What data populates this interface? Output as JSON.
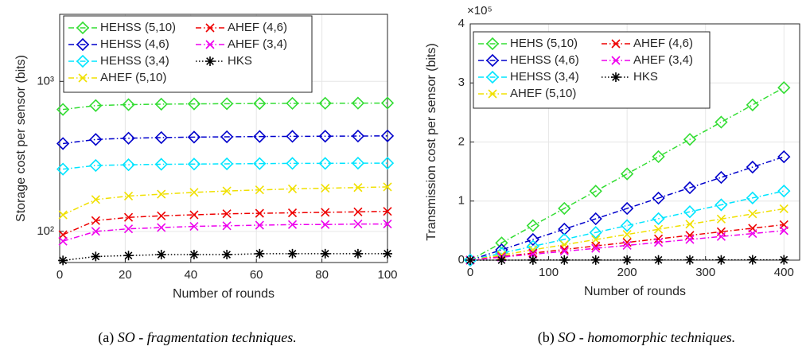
{
  "chart_data": [
    {
      "type": "line",
      "yscale": "log",
      "grid": true,
      "legend": "upper left",
      "xlabel": "Number of rounds",
      "ylabel": "Storage cost per sensor (bits)",
      "caption": {
        "label": "(a)",
        "text": "SO - fragmentation techniques."
      },
      "xlim": [
        0,
        100
      ],
      "xticks": [
        0,
        20,
        40,
        60,
        80,
        100
      ],
      "ylim": [
        62,
        2800
      ],
      "yticks": [
        {
          "value": 100,
          "label": "10²"
        },
        {
          "value": 1000,
          "label": "10³"
        }
      ],
      "x": [
        1,
        11,
        21,
        31,
        41,
        51,
        61,
        71,
        81,
        91,
        100
      ],
      "series": [
        {
          "name": "HEHSS (5,10)",
          "color": "#33dd33",
          "marker": "diamond",
          "values": [
            650,
            690,
            700,
            705,
            708,
            710,
            712,
            714,
            715,
            716,
            717
          ]
        },
        {
          "name": "HEHSS (4,6)",
          "color": "#0000cc",
          "marker": "diamond",
          "values": [
            385,
            410,
            418,
            422,
            425,
            427,
            429,
            430,
            431,
            432,
            433
          ]
        },
        {
          "name": "HEHSS (3,4)",
          "color": "#00e5ff",
          "marker": "diamond",
          "values": [
            260,
            275,
            278,
            280,
            281,
            282,
            283,
            284,
            284,
            285,
            285
          ]
        },
        {
          "name": "AHEF (5,10)",
          "color": "#f0e000",
          "marker": "x",
          "values": [
            129,
            163,
            172,
            177,
            182,
            186,
            189,
            192,
            194,
            196,
            198
          ]
        },
        {
          "name": "AHEF (4,6)",
          "color": "#ee0000",
          "marker": "x",
          "values": [
            95,
            118,
            124,
            127,
            129,
            131,
            132,
            133,
            134,
            135,
            136
          ]
        },
        {
          "name": "AHEF (3,4)",
          "color": "#ee00ee",
          "marker": "x",
          "values": [
            86,
            100,
            104,
            106,
            108,
            109,
            110,
            111,
            111,
            112,
            112
          ]
        },
        {
          "name": "HKS",
          "color": "#000000",
          "marker": "asterisk",
          "values": [
            64,
            68,
            69,
            70,
            70,
            70,
            71,
            71,
            71,
            71,
            71
          ]
        }
      ]
    },
    {
      "type": "line",
      "grid": true,
      "legend": "upper left",
      "xlabel": "Number of rounds",
      "ylabel": "Transmission cost per sensor (bits)",
      "y_multiplier": "×10⁵",
      "caption": {
        "label": "(b)",
        "text": "SO - homomorphic techniques."
      },
      "xlim": [
        0,
        420
      ],
      "xticks": [
        0,
        100,
        200,
        300,
        400
      ],
      "ylim": [
        0,
        400000
      ],
      "yticks": [
        0,
        {
          "value": 100000,
          "label": "1"
        },
        {
          "value": 200000,
          "label": "2"
        },
        {
          "value": 300000,
          "label": "3"
        },
        {
          "value": 400000,
          "label": "4"
        }
      ],
      "x": [
        0,
        40,
        80,
        120,
        160,
        200,
        240,
        280,
        320,
        360,
        400
      ],
      "series": [
        {
          "name": "HEHS (5,10)",
          "color": "#33dd33",
          "marker": "diamond",
          "values": [
            0,
            29200,
            58400,
            87600,
            116800,
            146000,
            175200,
            204400,
            233600,
            262800,
            292000
          ]
        },
        {
          "name": "HEHSS (4,6)",
          "color": "#0000cc",
          "marker": "diamond",
          "values": [
            0,
            17500,
            35000,
            52500,
            70000,
            87500,
            105000,
            122500,
            140000,
            157500,
            175000
          ]
        },
        {
          "name": "HEHSS (3,4)",
          "color": "#00e5ff",
          "marker": "diamond",
          "values": [
            0,
            11700,
            23400,
            35100,
            46800,
            58500,
            70200,
            81900,
            93600,
            105300,
            117000
          ]
        },
        {
          "name": "AHEF (5,10)",
          "color": "#f0e000",
          "marker": "x",
          "values": [
            0,
            8700,
            17400,
            26100,
            34800,
            43500,
            52200,
            60900,
            69600,
            78300,
            87000
          ]
        },
        {
          "name": "AHEF (4,6)",
          "color": "#ee0000",
          "marker": "x",
          "values": [
            0,
            6000,
            12000,
            18000,
            24000,
            30000,
            36000,
            42000,
            48000,
            54000,
            60000
          ]
        },
        {
          "name": "AHEF (3,4)",
          "color": "#ee00ee",
          "marker": "x",
          "values": [
            0,
            5000,
            10000,
            15000,
            20000,
            25000,
            30000,
            35000,
            40000,
            45000,
            50000
          ]
        },
        {
          "name": "HKS",
          "color": "#000000",
          "marker": "asterisk",
          "values": [
            0,
            50,
            100,
            150,
            200,
            250,
            300,
            350,
            400,
            450,
            500
          ]
        }
      ]
    }
  ]
}
